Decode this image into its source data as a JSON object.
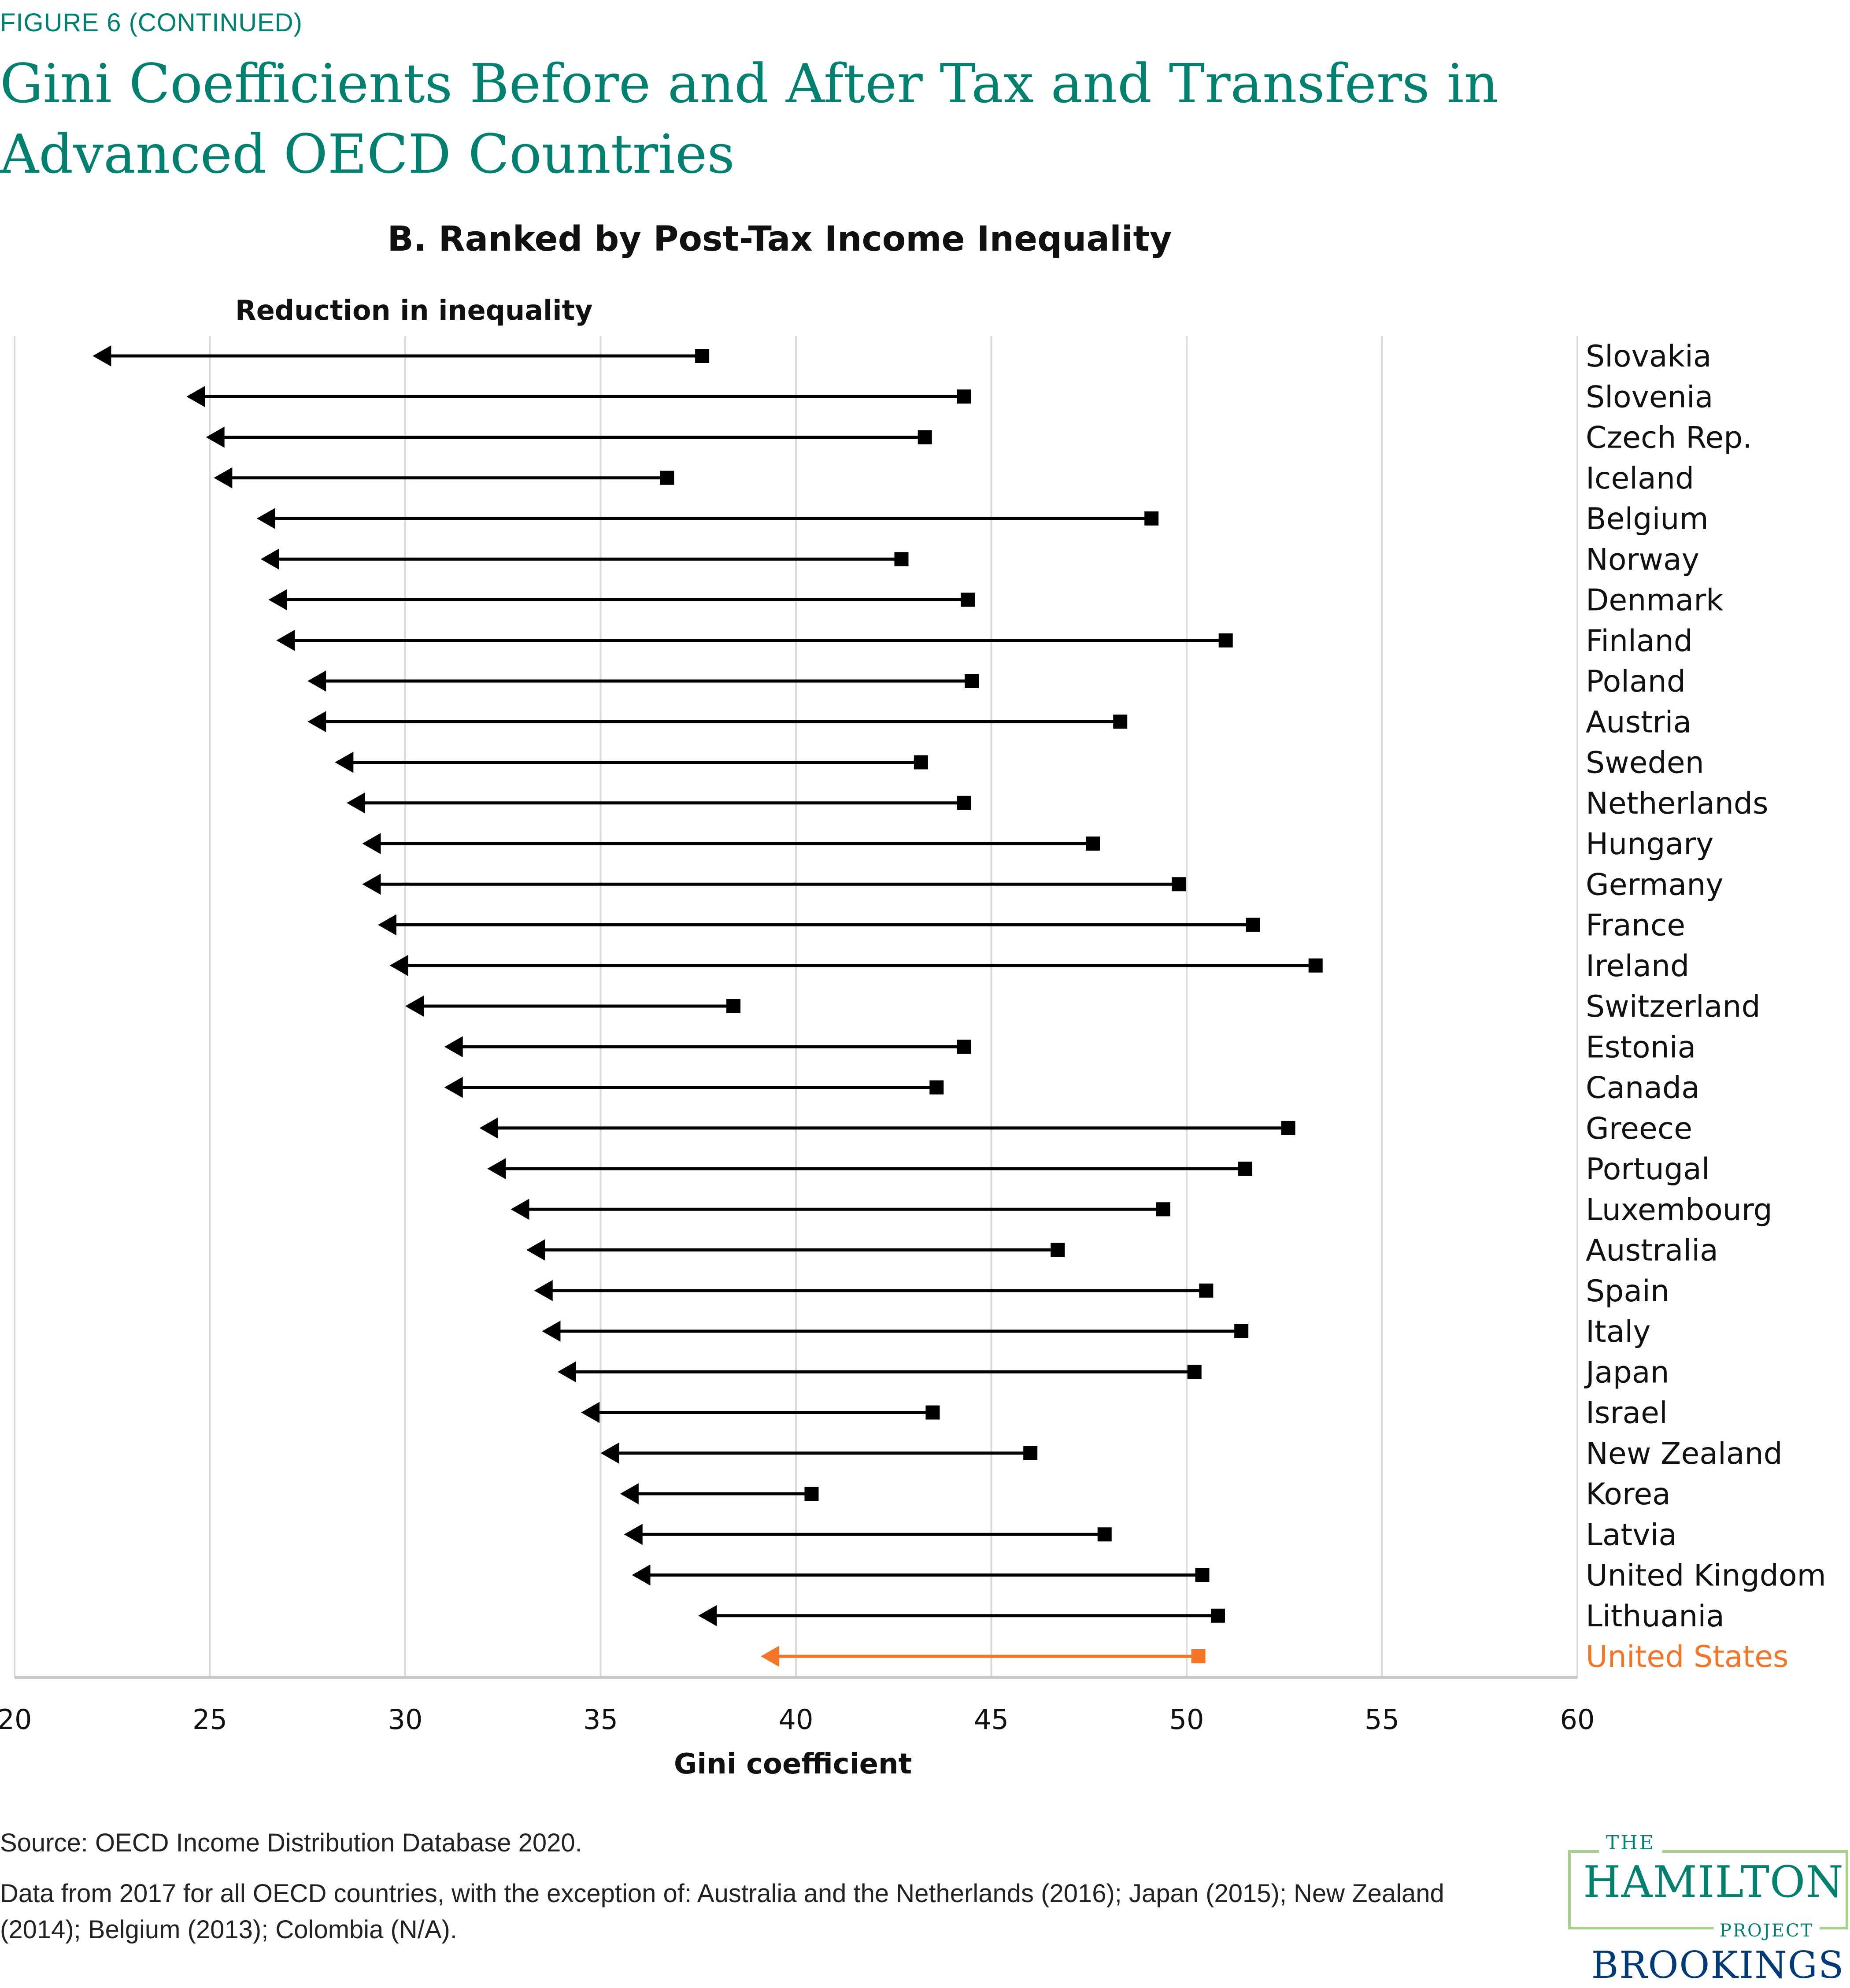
{
  "figure_label": "FIGURE 6 (CONTINUED)",
  "title": "Gini Coefficients Before and After Tax and Transfers in Advanced OECD Countries",
  "subtitle": "B. Ranked by Post-Tax Income Inequality",
  "annotation": "Reduction in inequality",
  "source": "Source:  OECD Income Distribution Database 2020.",
  "note": "Data from 2017 for all OECD countries, with the exception of: Australia and the Netherlands (2016); Japan (2015); New Zealand (2014); Belgium (2013); Colombia (N/A).",
  "logo": {
    "the": "THE",
    "hamilton": "HAMILTON",
    "project": "PROJECT",
    "brookings": "BROOKINGS"
  },
  "colors": {
    "brand_teal": "#00806f",
    "highlight": "#f47428",
    "series": "#000000",
    "grid": "#d9d9d9",
    "brookings_blue": "#003a78",
    "logo_border": "#a8d08d"
  },
  "chart_data": {
    "type": "dumbbell-arrow",
    "title": "B. Ranked by Post-Tax Income Inequality",
    "xlabel": "Gini coefficient",
    "ylabel": "",
    "xlim": [
      20,
      60
    ],
    "xticks": [
      20,
      25,
      30,
      35,
      40,
      45,
      50,
      55,
      60
    ],
    "grid": true,
    "annotation": "Reduction in inequality",
    "highlight_category": "United States",
    "series": [
      {
        "name": "Before tax and transfers (square)",
        "key": "pre"
      },
      {
        "name": "After tax and transfers (arrow head)",
        "key": "post"
      }
    ],
    "categories": [
      "Slovakia",
      "Slovenia",
      "Czech Rep.",
      "Iceland",
      "Belgium",
      "Norway",
      "Denmark",
      "Finland",
      "Poland",
      "Austria",
      "Sweden",
      "Netherlands",
      "Hungary",
      "Germany",
      "France",
      "Ireland",
      "Switzerland",
      "Estonia",
      "Canada",
      "Greece",
      "Portugal",
      "Luxembourg",
      "Australia",
      "Spain",
      "Italy",
      "Japan",
      "Israel",
      "New Zealand",
      "Korea",
      "Latvia",
      "United Kingdom",
      "Lithuania",
      "United States"
    ],
    "pre": [
      37.6,
      44.3,
      43.3,
      36.7,
      49.1,
      42.7,
      44.4,
      51.0,
      44.5,
      48.3,
      43.2,
      44.3,
      47.6,
      49.8,
      51.7,
      53.3,
      38.4,
      44.3,
      43.6,
      52.6,
      51.5,
      49.4,
      46.7,
      50.5,
      51.4,
      50.2,
      43.5,
      46.0,
      40.4,
      47.9,
      50.4,
      50.8,
      50.3
    ],
    "post": [
      22.0,
      24.4,
      24.9,
      25.1,
      26.2,
      26.3,
      26.5,
      26.7,
      27.5,
      27.5,
      28.2,
      28.5,
      28.9,
      28.9,
      29.3,
      29.6,
      30.0,
      31.0,
      31.0,
      31.9,
      32.1,
      32.7,
      33.1,
      33.3,
      33.5,
      33.9,
      34.5,
      35.0,
      35.5,
      35.6,
      35.8,
      37.5,
      39.1
    ]
  }
}
